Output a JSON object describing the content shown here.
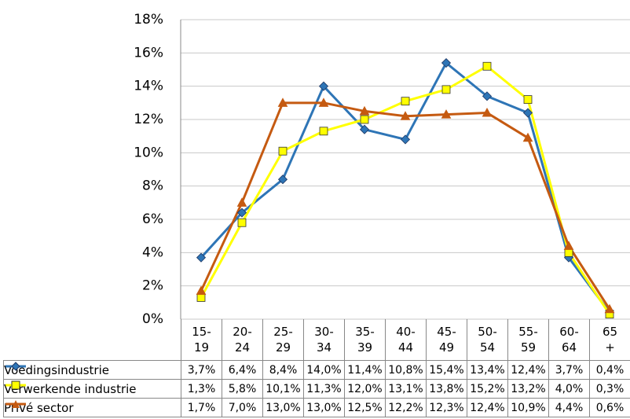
{
  "chart_data": {
    "type": "line",
    "categories": [
      "15-19",
      "20-24",
      "25-29",
      "30-34",
      "35-39",
      "40-44",
      "45-49",
      "50-54",
      "55-59",
      "60-64",
      "65+"
    ],
    "series": [
      {
        "name": "Voedingsindustrie",
        "color": "#2e75b6",
        "marker": "diamond",
        "values": [
          3.7,
          6.4,
          8.4,
          14.0,
          11.4,
          10.8,
          15.4,
          13.4,
          12.4,
          3.7,
          0.4
        ],
        "value_labels": [
          "3,7%",
          "6,4%",
          "8,4%",
          "14,0%",
          "11,4%",
          "10,8%",
          "15,4%",
          "13,4%",
          "12,4%",
          "3,7%",
          "0,4%"
        ]
      },
      {
        "name": "Verwerkende industrie",
        "color": "#ffff00",
        "marker": "square",
        "values": [
          1.3,
          5.8,
          10.1,
          11.3,
          12.0,
          13.1,
          13.8,
          15.2,
          13.2,
          4.0,
          0.3
        ],
        "value_labels": [
          "1,3%",
          "5,8%",
          "10,1%",
          "11,3%",
          "12,0%",
          "13,1%",
          "13,8%",
          "15,2%",
          "13,2%",
          "4,0%",
          "0,3%"
        ]
      },
      {
        "name": "Privé sector",
        "color": "#c55a11",
        "marker": "triangle",
        "values": [
          1.7,
          7.0,
          13.0,
          13.0,
          12.5,
          12.2,
          12.3,
          12.4,
          10.9,
          4.4,
          0.6
        ],
        "value_labels": [
          "1,7%",
          "7,0%",
          "13,0%",
          "13,0%",
          "12,5%",
          "12,2%",
          "12,3%",
          "12,4%",
          "10,9%",
          "4,4%",
          "0,6%"
        ]
      }
    ],
    "ylim": [
      0,
      18
    ],
    "yticks": [
      {
        "value": 0,
        "label": "0%"
      },
      {
        "value": 2,
        "label": "2%"
      },
      {
        "value": 4,
        "label": "4%"
      },
      {
        "value": 6,
        "label": "6%"
      },
      {
        "value": 8,
        "label": "8%"
      },
      {
        "value": 10,
        "label": "10%"
      },
      {
        "value": 12,
        "label": "12%"
      },
      {
        "value": 14,
        "label": "14%"
      },
      {
        "value": 16,
        "label": "16%"
      },
      {
        "value": 18,
        "label": "18%"
      }
    ],
    "grid": true
  }
}
